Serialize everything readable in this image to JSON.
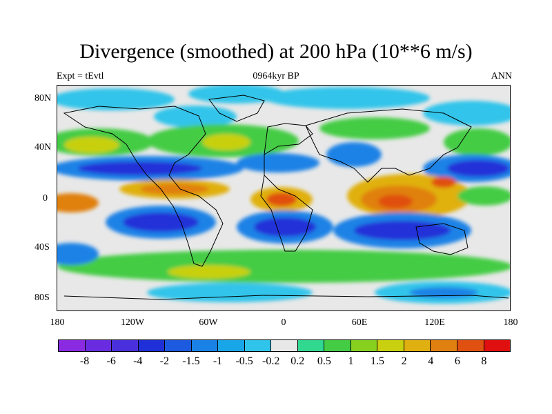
{
  "title": "Divergence (smoothed) at 200 hPa (10**6 m/s)",
  "left_label": "Expt = tEvtl",
  "center_label": "0964kyr BP",
  "right_label": "ANN",
  "y_axis_labels": [
    "80N",
    "40N",
    "0",
    "40S",
    "80S"
  ],
  "x_axis_labels": [
    "180",
    "120W",
    "60W",
    "0",
    "60E",
    "120E",
    "180"
  ],
  "colorbar": {
    "labels": [
      "-8",
      "-6",
      "-4",
      "-2",
      "-1.5",
      "-1",
      "-0.5",
      "-0.2",
      "0.2",
      "0.5",
      "1",
      "1.5",
      "2",
      "4",
      "6",
      "8"
    ],
    "colors": [
      "#8a2be2",
      "#6a2ce0",
      "#4a30dc",
      "#2030d8",
      "#1c5ae0",
      "#1a82e6",
      "#18a6e8",
      "#30c4ea",
      "#e8e8e8",
      "#30d890",
      "#44cc44",
      "#88d020",
      "#c8d010",
      "#e0b010",
      "#e08010",
      "#e05010",
      "#e01010"
    ]
  }
}
